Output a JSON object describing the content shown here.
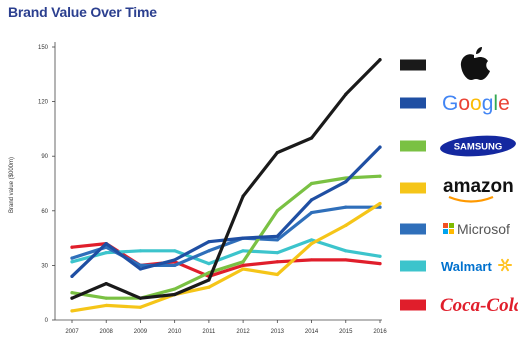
{
  "chart_data": {
    "type": "line",
    "title": "Brand Value Over Time",
    "xlabel": "",
    "ylabel": "Brand value ($000m)",
    "x": [
      "2007",
      "2008",
      "2009",
      "2010",
      "2011",
      "2012",
      "2013",
      "2014",
      "2015",
      "2016"
    ],
    "ylim": [
      0,
      150
    ],
    "yticks": [
      0,
      30,
      60,
      90,
      120,
      150
    ],
    "grid": false,
    "legend_position": "right",
    "series": [
      {
        "name": "Apple",
        "color": "#1a1a1a",
        "icon": "apple-logo",
        "values": [
          12,
          20,
          12,
          14,
          22,
          68,
          92,
          100,
          124,
          143
        ]
      },
      {
        "name": "Google",
        "color": "#1f4fa3",
        "icon": "google-logo",
        "values": [
          24,
          42,
          28,
          33,
          43,
          45,
          46,
          66,
          76,
          95
        ]
      },
      {
        "name": "Samsung",
        "color": "#7ac143",
        "icon": "samsung-logo",
        "values": [
          15,
          12,
          12,
          17,
          26,
          32,
          60,
          75,
          78,
          79
        ]
      },
      {
        "name": "Amazon",
        "color": "#f5c518",
        "icon": "amazon-logo",
        "values": [
          5,
          8,
          7,
          14,
          18,
          28,
          25,
          42,
          52,
          64
        ]
      },
      {
        "name": "Microsoft",
        "color": "#2f6fba",
        "icon": "microsoft-logo",
        "values": [
          34,
          40,
          30,
          30,
          38,
          45,
          44,
          59,
          62,
          62
        ]
      },
      {
        "name": "Walmart",
        "color": "#3cc4cc",
        "icon": "walmart-logo",
        "values": [
          32,
          37,
          38,
          38,
          31,
          38,
          37,
          44,
          38,
          35
        ]
      },
      {
        "name": "Coca-Cola",
        "color": "#e01e2b",
        "icon": "coca-cola-logo",
        "values": [
          40,
          42,
          30,
          32,
          24,
          30,
          32,
          33,
          33,
          31
        ]
      }
    ]
  }
}
